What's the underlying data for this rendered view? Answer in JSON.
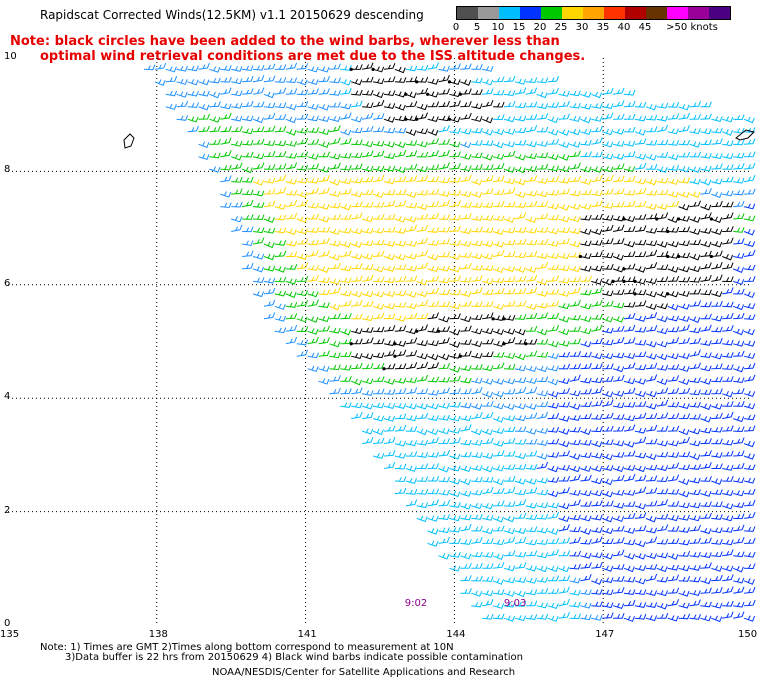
{
  "title": "Rapidscat Corrected Winds(12.5KM) v1.1 20150629 descending",
  "note_line1": "Note: black circles have been added to the wind barbs, wherever less than",
  "note_line2": "optimal wind retrieval conditions are met due to the ISS altitude changes.",
  "speed_scale": {
    "colors": [
      "#505050",
      "#9a9a9a",
      "#00bfff",
      "#0033ff",
      "#00c800",
      "#ffd700",
      "#ffa500",
      "#ff3300",
      "#b00000",
      "#663300",
      "#ff00ff",
      "#990099",
      "#4b0082"
    ],
    "labels": [
      "0",
      "5",
      "10",
      "15",
      "20",
      "25",
      "30",
      "35",
      "40",
      "45",
      ">50 knots"
    ]
  },
  "chart_data": {
    "type": "map",
    "xlabel": "",
    "ylabel": "",
    "x_ticks": [
      "135",
      "138",
      "141",
      "144",
      "147",
      "150"
    ],
    "y_ticks": [
      "10",
      "8",
      "6",
      "4",
      "2",
      "0"
    ],
    "xlim": [
      135,
      150
    ],
    "ylim": [
      0,
      10
    ],
    "grid": true,
    "swath_polygon": [
      [
        137.5,
        10
      ],
      [
        143.2,
        10
      ],
      [
        150,
        9
      ],
      [
        150,
        0
      ],
      [
        144.5,
        0
      ],
      [
        141.5,
        4
      ],
      [
        140,
        5.5
      ],
      [
        139,
        8
      ],
      [
        137.5,
        10
      ]
    ],
    "regions": [
      {
        "name": "light-blue-north",
        "color": "#00bfff",
        "polygon": [
          [
            141.5,
            10
          ],
          [
            150,
            9.2
          ],
          [
            150,
            7.6
          ],
          [
            145,
            8.3
          ],
          [
            141.5,
            9.2
          ]
        ]
      },
      {
        "name": "blue-east",
        "color": "#0033ff",
        "polygon": [
          [
            146,
            5
          ],
          [
            150,
            7.5
          ],
          [
            150,
            0
          ],
          [
            147,
            0
          ],
          [
            145.5,
            2
          ]
        ]
      },
      {
        "name": "green-band",
        "color": "#00c800",
        "polygon": [
          [
            138.5,
            9
          ],
          [
            147,
            8.2
          ],
          [
            150,
            7.2
          ],
          [
            148,
            5.8
          ],
          [
            146,
            4.8
          ],
          [
            144,
            4.2
          ],
          [
            141.5,
            4.3
          ],
          [
            140.5,
            5.5
          ],
          [
            139.5,
            7.5
          ]
        ]
      },
      {
        "name": "black-north",
        "color": "#000000",
        "polygon": [
          [
            141.8,
            9.9
          ],
          [
            144,
            9.7
          ],
          [
            145,
            9
          ],
          [
            143,
            8.6
          ],
          [
            141.8,
            9.2
          ]
        ]
      },
      {
        "name": "yellow-core",
        "color": "#ffd700",
        "polygon": [
          [
            139.8,
            8
          ],
          [
            146,
            8
          ],
          [
            149,
            7.8
          ],
          [
            148,
            6.5
          ],
          [
            146,
            5.6
          ],
          [
            143.5,
            5
          ],
          [
            141.5,
            5.5
          ],
          [
            140.5,
            6.5
          ]
        ]
      },
      {
        "name": "black-east",
        "color": "#000000",
        "polygon": [
          [
            146.5,
            7.2
          ],
          [
            149.5,
            7.5
          ],
          [
            149.5,
            5.9
          ],
          [
            147.5,
            5.5
          ],
          [
            146.4,
            6.2
          ]
        ]
      },
      {
        "name": "black-south",
        "color": "#000000",
        "polygon": [
          [
            141.8,
            5.2
          ],
          [
            145,
            5.6
          ],
          [
            145.5,
            4.9
          ],
          [
            143,
            4.4
          ],
          [
            141.8,
            4.7
          ]
        ]
      },
      {
        "name": "light-blue-southwest",
        "color": "#00bfff",
        "polygon": [
          [
            141.5,
            4
          ],
          [
            145,
            3.8
          ],
          [
            146,
            2
          ],
          [
            146.5,
            0
          ],
          [
            144.5,
            0
          ]
        ]
      }
    ],
    "timestamps": [
      {
        "label": "9:02",
        "lon": 143.2,
        "lat": 0.15
      },
      {
        "label": "9:03",
        "lon": 145.2,
        "lat": 0.15
      }
    ]
  },
  "footer": {
    "line1": "Note: 1) Times are GMT 2)Times along bottom correspond to measurement at 10N",
    "line2": "3)Data buffer is 22 hrs from 20150629 4) Black wind barbs indicate possible contamination",
    "line3": "NOAA/NESDIS/Center for Satellite Applications and Research"
  }
}
